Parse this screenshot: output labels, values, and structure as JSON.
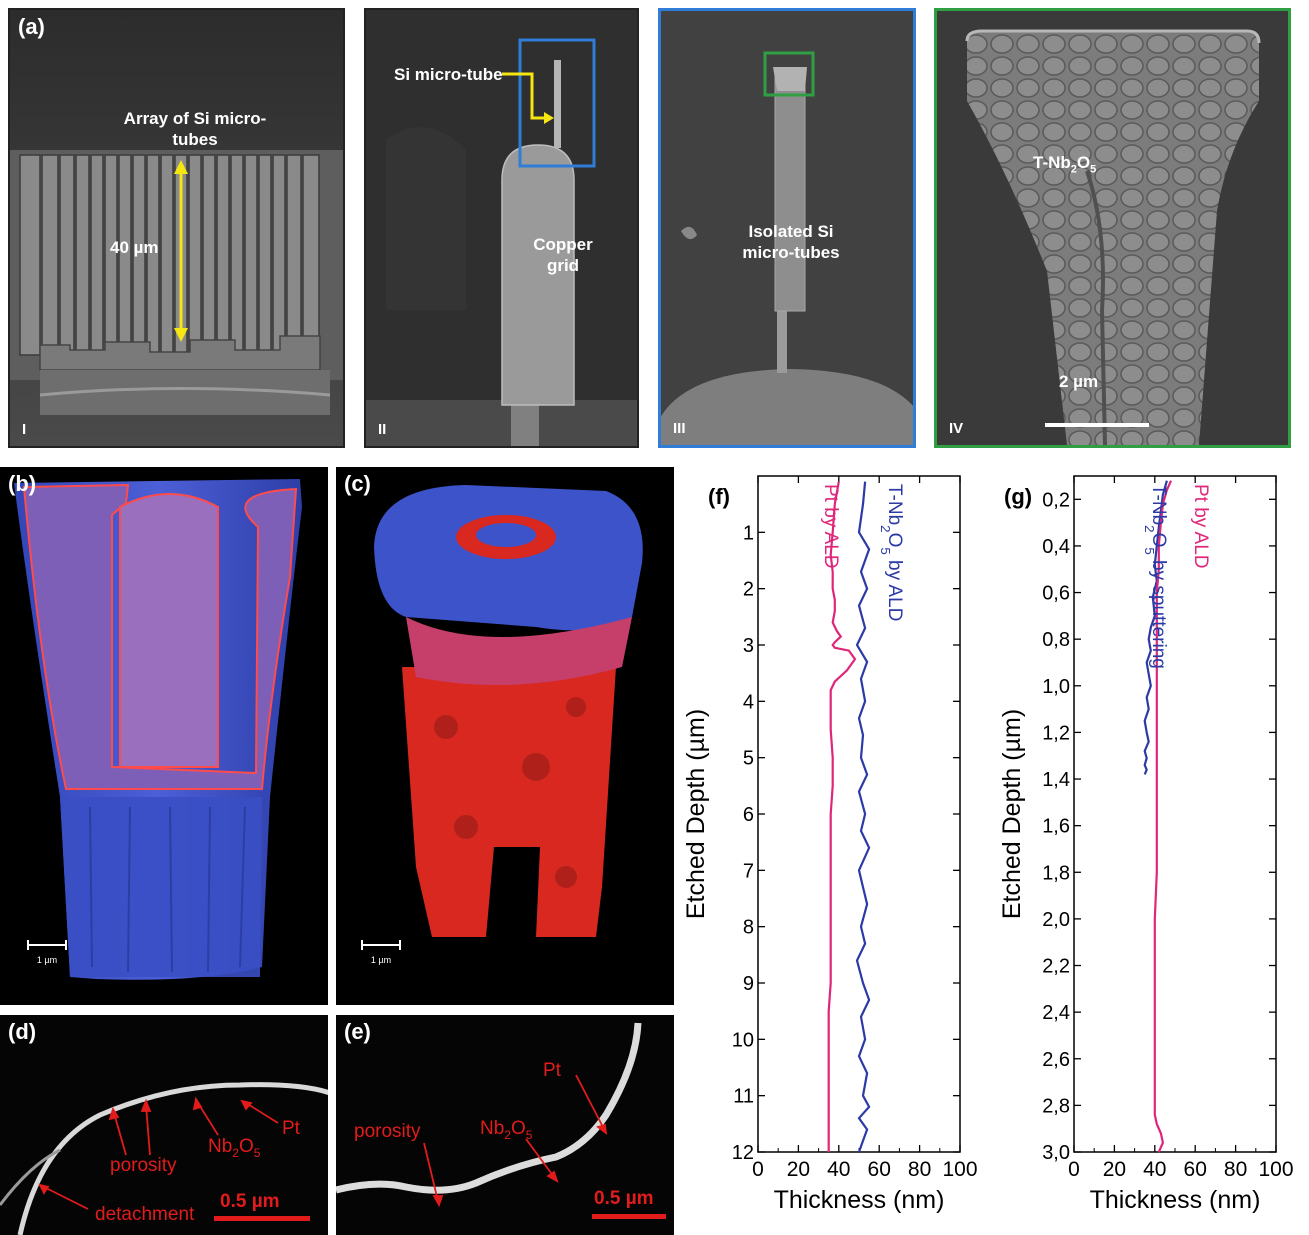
{
  "colors": {
    "pt": "#e0267a",
    "nb": "#2b3aa6",
    "annot_red": "#e21b1b",
    "arrow_yellow": "#f5e612",
    "box_blue": "#2f7dd6",
    "box_green": "#2ea043"
  },
  "panel_a": {
    "label": "(a)",
    "sub_i": {
      "roman": "I",
      "title_line1": "Array of Si micro-",
      "title_line2": "tubes",
      "height_label": "40 µm"
    },
    "sub_ii": {
      "roman": "II",
      "tube_label": "Si micro-tube",
      "grid_line1": "Copper",
      "grid_line2": "grid"
    },
    "sub_iii": {
      "roman": "III",
      "label_line1": "Isolated Si",
      "label_line2": "micro-tubes"
    },
    "sub_iv": {
      "roman": "IV",
      "material_main": "T-Nb",
      "material_sub1": "2",
      "material_o": "O",
      "material_sub2": "5",
      "scale": "2 µm"
    }
  },
  "panel_b": {
    "label": "(b)",
    "scale": "1 µm"
  },
  "panel_c": {
    "label": "(c)",
    "scale": "1 µm"
  },
  "panel_d": {
    "label": "(d)",
    "porosity": "porosity",
    "nb_main": "Nb",
    "nb_sub1": "2",
    "nb_o": "O",
    "nb_sub2": "5",
    "pt": "Pt",
    "detachment": "detachment",
    "scale": "0.5 µm"
  },
  "panel_e": {
    "label": "(e)",
    "porosity": "porosity",
    "nb_main": "Nb",
    "nb_sub1": "2",
    "nb_o": "O",
    "nb_sub2": "5",
    "pt": "Pt",
    "scale": "0.5 µm"
  },
  "chart_data": [
    {
      "panel": "(f)",
      "type": "line",
      "xlabel": "Thickness (nm)",
      "ylabel": "Etched Depth (µm)",
      "xlim": [
        0,
        100
      ],
      "ylim": [
        12,
        0
      ],
      "xticks": [
        "0",
        "20",
        "40",
        "60",
        "80",
        "100"
      ],
      "yticks": [
        "1",
        "2",
        "3",
        "4",
        "5",
        "6",
        "7",
        "8",
        "9",
        "10",
        "11",
        "12"
      ],
      "series": [
        {
          "name": "Pt by ALD",
          "color": "#e0267a",
          "x": [
            40,
            38,
            37,
            36,
            37,
            37,
            38,
            38,
            37,
            39,
            41,
            38,
            37,
            38,
            45,
            48,
            44,
            38,
            36,
            36,
            37,
            37,
            36,
            36,
            36,
            36,
            36,
            36,
            36,
            35,
            35,
            35,
            35
          ],
          "y": [
            0.1,
            0.5,
            1.0,
            1.4,
            1.7,
            2.0,
            2.2,
            2.4,
            2.6,
            2.75,
            2.85,
            2.95,
            3.0,
            3.05,
            3.1,
            3.25,
            3.45,
            3.65,
            3.8,
            4.5,
            5.0,
            5.5,
            6.0,
            6.5,
            7.0,
            7.5,
            8.0,
            8.5,
            9.0,
            9.5,
            10.0,
            11.0,
            12.0
          ]
        },
        {
          "name": "T-Nb2O5 by ALD",
          "color": "#2b3aa6",
          "x": [
            53,
            52,
            50,
            55,
            51,
            54,
            50,
            53,
            49,
            54,
            51,
            53,
            50,
            52,
            51,
            54,
            50,
            53,
            51,
            55,
            50,
            52,
            54,
            51,
            53,
            49,
            52,
            55,
            51,
            53,
            50,
            54,
            52,
            55,
            50,
            54,
            52,
            51,
            50
          ],
          "y": [
            0.1,
            0.5,
            1.0,
            1.3,
            1.7,
            2.0,
            2.3,
            2.7,
            3.0,
            3.3,
            3.6,
            4.0,
            4.3,
            4.6,
            5.0,
            5.3,
            5.6,
            6.0,
            6.3,
            6.6,
            7.0,
            7.3,
            7.6,
            8.0,
            8.3,
            8.6,
            9.0,
            9.3,
            9.6,
            10.0,
            10.3,
            10.6,
            11.0,
            11.2,
            11.4,
            11.6,
            11.8,
            11.9,
            12.0
          ]
        }
      ]
    },
    {
      "panel": "(g)",
      "type": "line",
      "xlabel": "Thickness (nm)",
      "ylabel": "Etched Depth (µm)",
      "xlim": [
        0,
        100
      ],
      "ylim": [
        3.0,
        0.1
      ],
      "xticks": [
        "0",
        "20",
        "40",
        "60",
        "80",
        "100"
      ],
      "yticks": [
        "0,2",
        "0,4",
        "0,6",
        "0,8",
        "1,0",
        "1,2",
        "1,4",
        "1,6",
        "1,8",
        "2,0",
        "2,2",
        "2,4",
        "2,6",
        "2,8",
        "3,0"
      ],
      "series": [
        {
          "name": "T-Nb2O5 by sputtering",
          "color": "#2b3aa6",
          "x": [
            46,
            44,
            43,
            42,
            41,
            40,
            41,
            39,
            40,
            38,
            37,
            38,
            36,
            37,
            38,
            36,
            37,
            35,
            36,
            37,
            35,
            36,
            35,
            36,
            35
          ],
          "y": [
            0.12,
            0.18,
            0.25,
            0.32,
            0.4,
            0.48,
            0.55,
            0.62,
            0.7,
            0.75,
            0.8,
            0.85,
            0.9,
            0.95,
            1.0,
            1.05,
            1.1,
            1.15,
            1.2,
            1.24,
            1.28,
            1.31,
            1.34,
            1.36,
            1.38
          ]
        },
        {
          "name": "Pt by ALD",
          "color": "#e0267a",
          "x": [
            48,
            46,
            44,
            43,
            42,
            42,
            41,
            41,
            41,
            41,
            41,
            41,
            41,
            40,
            40,
            40,
            40,
            40,
            40,
            40,
            40,
            41,
            43,
            44,
            42
          ],
          "y": [
            0.12,
            0.16,
            0.22,
            0.3,
            0.4,
            0.5,
            0.6,
            0.8,
            1.0,
            1.2,
            1.4,
            1.6,
            1.8,
            2.0,
            2.2,
            2.4,
            2.6,
            2.7,
            2.75,
            2.8,
            2.84,
            2.88,
            2.92,
            2.96,
            3.0
          ]
        }
      ]
    }
  ]
}
